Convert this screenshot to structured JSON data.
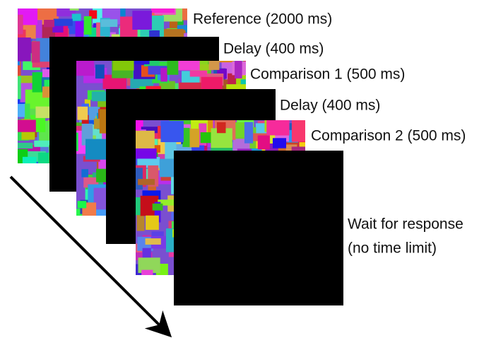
{
  "panels": [
    {
      "label": "Reference (2000 ms)"
    },
    {
      "label": "Delay (400 ms)"
    },
    {
      "label": "Comparison 1 (500 ms)"
    },
    {
      "label": "Delay (400 ms)"
    },
    {
      "label": "Comparison 2 (500 ms)"
    },
    {
      "lines": [
        "Wait for response",
        "(no time limit)"
      ]
    }
  ]
}
